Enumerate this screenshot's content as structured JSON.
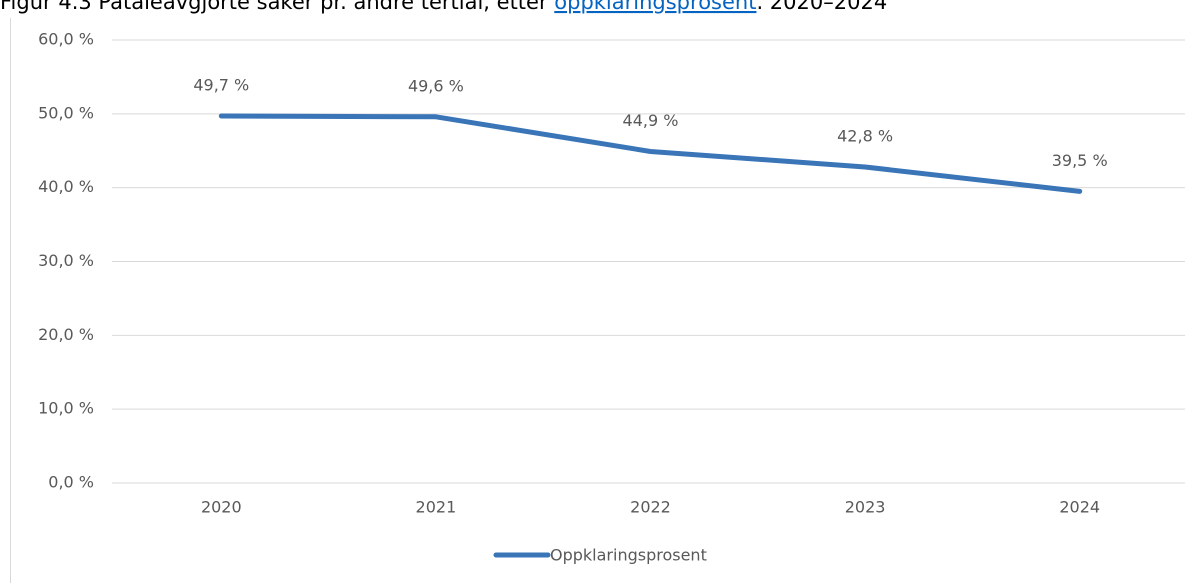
{
  "chart_data": {
    "type": "line",
    "title_prefix": "Figur 4.3 Påtaleavgjorte saker pr. andre tertial, etter ",
    "title_link": "oppklaringsprosent",
    "title_suffix": ". 2020–2024",
    "categories": [
      "2020",
      "2021",
      "2022",
      "2023",
      "2024"
    ],
    "series": [
      {
        "name": "Oppklaringsprosent",
        "color": "#3a75b8",
        "values": [
          49.7,
          49.6,
          44.9,
          42.8,
          39.5
        ],
        "value_labels": [
          "49,7 %",
          "49,6 %",
          "44,9 %",
          "42,8 %",
          "39,5 %"
        ]
      }
    ],
    "ylim": [
      0,
      60
    ],
    "yticks": [
      {
        "value": 0,
        "label": "0,0 %"
      },
      {
        "value": 10,
        "label": "10,0 %"
      },
      {
        "value": 20,
        "label": "20,0 %"
      },
      {
        "value": 30,
        "label": "30,0 %"
      },
      {
        "value": 40,
        "label": "40,0 %"
      },
      {
        "value": 50,
        "label": "50,0 %"
      },
      {
        "value": 60,
        "label": "60,0 %"
      }
    ],
    "grid": true,
    "legend": "bottom"
  }
}
